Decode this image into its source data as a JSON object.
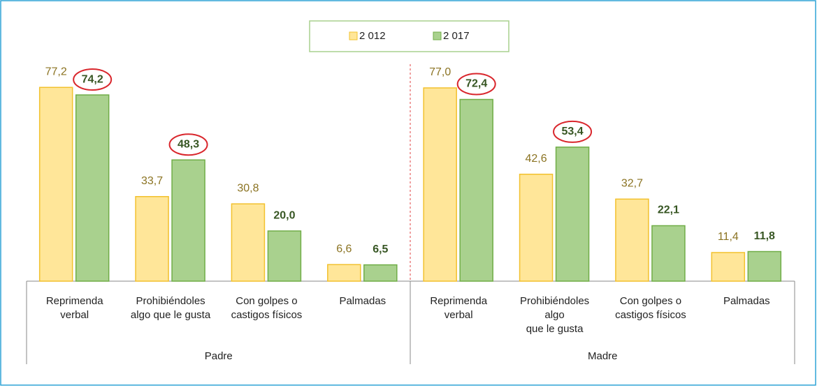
{
  "chart_data": {
    "type": "bar",
    "categories": [
      [
        "Reprimenda",
        "verbal"
      ],
      [
        "Prohibiéndoles",
        "algo que le gusta"
      ],
      [
        "Con golpes o",
        "castigos físicos"
      ],
      [
        "Palmadas"
      ],
      [
        "Reprimenda",
        "verbal"
      ],
      [
        "Prohibiéndoles",
        "algo",
        "que le gusta"
      ],
      [
        "Con golpes o",
        "castigos físicos"
      ],
      [
        "Palmadas"
      ]
    ],
    "group_labels": [
      "Padre",
      "Madre"
    ],
    "series": [
      {
        "name": "2 012",
        "color": "#ffe699",
        "values": [
          77.2,
          33.7,
          30.8,
          6.6,
          77.0,
          42.6,
          32.7,
          11.4
        ],
        "value_labels": [
          "77,2",
          "33,7",
          "30,8",
          "6,6",
          "77,0",
          "42,6",
          "32,7",
          "11,4"
        ],
        "circled": []
      },
      {
        "name": "2 017",
        "color": "#a9d18e",
        "values": [
          74.2,
          48.3,
          20.0,
          6.5,
          72.4,
          53.4,
          22.1,
          11.8
        ],
        "value_labels": [
          "74,2",
          "48,3",
          "20,0",
          "6,5",
          "72,4",
          "53,4",
          "22,1",
          "11,8"
        ],
        "circled": [
          0,
          1,
          4,
          5
        ]
      }
    ],
    "ylim": [
      0,
      87
    ],
    "legend": "top"
  }
}
